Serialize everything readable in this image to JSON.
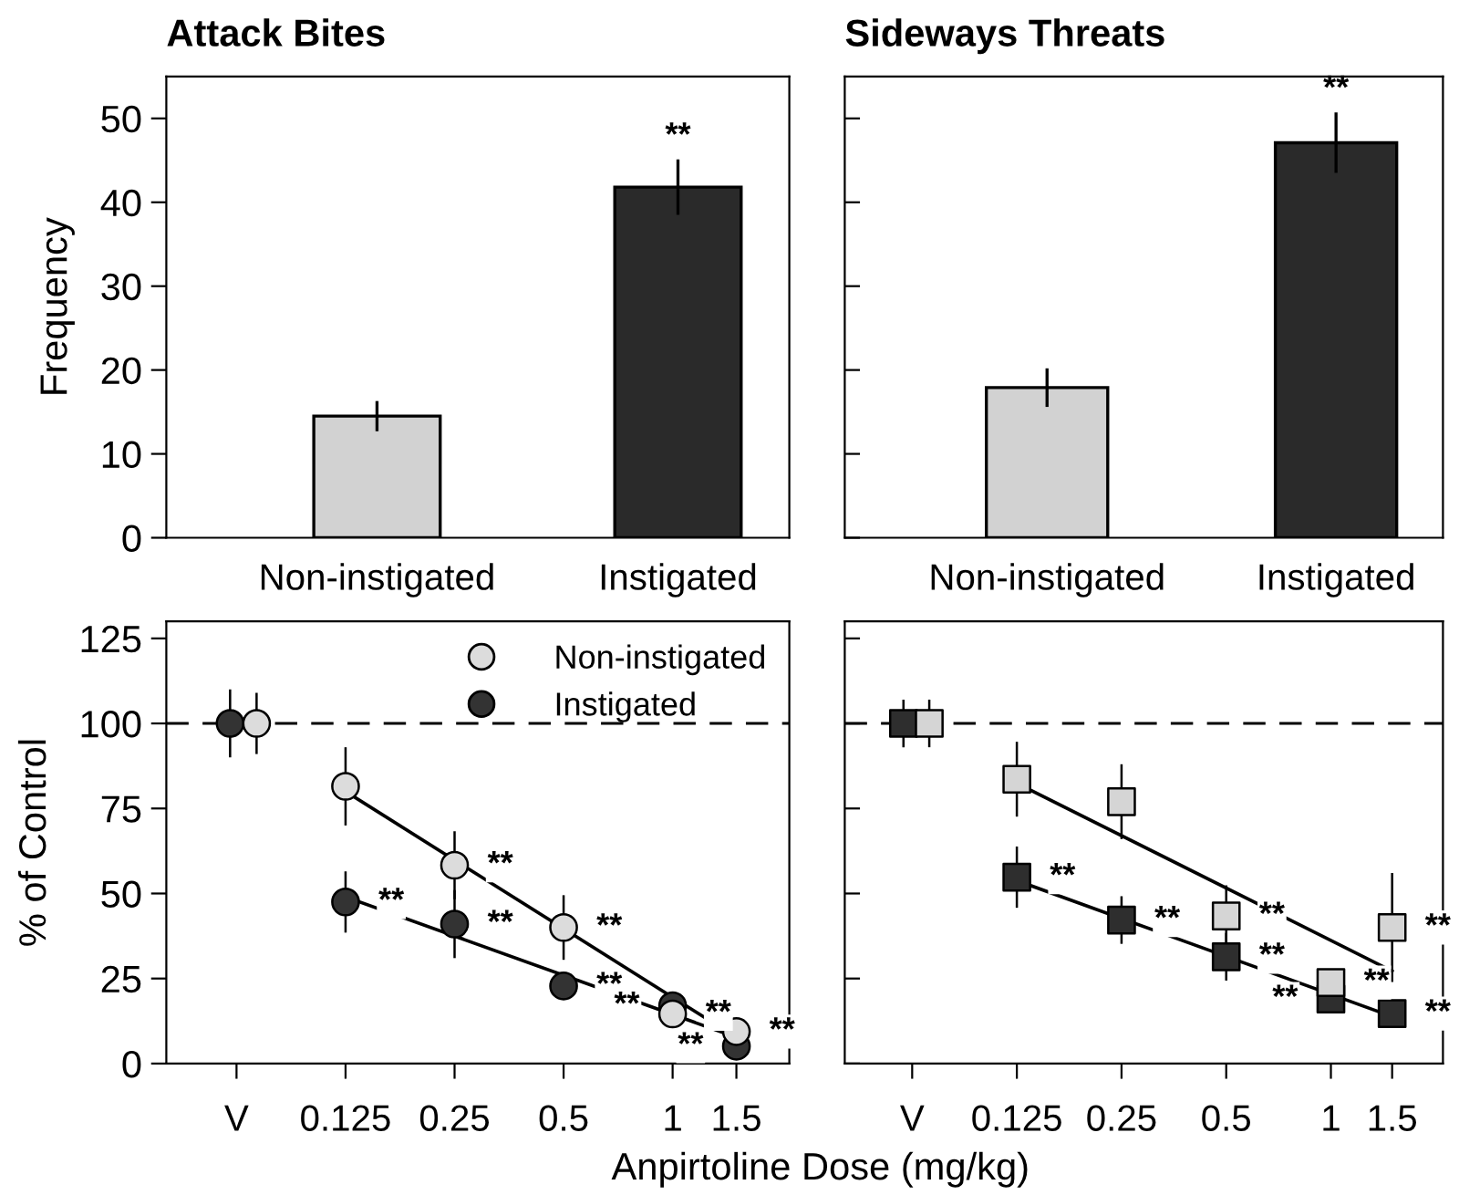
{
  "chart_data": [
    {
      "type": "bar",
      "title": "Attack Bites",
      "ylabel": "Frequency",
      "categories": [
        "Non-instigated",
        "Instigated"
      ],
      "values": [
        14.5,
        41.8
      ],
      "errors": [
        1.8,
        3.3
      ],
      "colors": [
        "#d2d2d2",
        "#2a2a2a"
      ],
      "ylim": [
        0,
        55
      ],
      "yticks": [
        0,
        10,
        20,
        30,
        40,
        50
      ],
      "grid": false,
      "annotations": [
        "**"
      ]
    },
    {
      "type": "bar",
      "title": "Sideways Threats",
      "categories": [
        "Non-instigated",
        "Instigated"
      ],
      "values": [
        17.9,
        47.1
      ],
      "errors": [
        2.3,
        3.6
      ],
      "colors": [
        "#d2d2d2",
        "#2a2a2a"
      ],
      "ylim": [
        0,
        55
      ],
      "yticks": [
        0,
        10,
        20,
        30,
        40,
        50
      ],
      "tick_labels": "x",
      "grid": false,
      "annotations": [
        "**"
      ]
    },
    {
      "type": "scatter",
      "ylabel": "% of Control",
      "xlabel": "Anpirtoline Dose (mg/kg)",
      "log": "x",
      "grid": false,
      "legend": "top right",
      "xlim": [
        0.04,
        2.1
      ],
      "xticks": [
        {
          "value": 0.0625,
          "label": "V"
        },
        0.125,
        0.25,
        0.5,
        1,
        1.5
      ],
      "ylim": [
        0,
        130
      ],
      "yticks": [
        0,
        25,
        50,
        75,
        100,
        125
      ],
      "series": [
        {
          "name": "Non-instigated",
          "color": "#dcdcdc",
          "marker": "circle",
          "x": [
            0.071,
            0.125,
            0.25,
            0.5,
            1,
            1.5
          ],
          "values": [
            100,
            81.5,
            58.3,
            40,
            14.6,
            9.4
          ],
          "errors": [
            9,
            11.5,
            10,
            9.5,
            null,
            null
          ]
        },
        {
          "name": "Instigated",
          "color": "#333333",
          "marker": "circle",
          "x": [
            0.06,
            0.125,
            0.25,
            0.5,
            1,
            1.5
          ],
          "values": [
            100,
            47.5,
            41,
            22.8,
            17,
            5.1
          ],
          "errors": [
            10,
            9,
            10,
            null,
            null,
            null
          ]
        },
        {
          "type": "line",
          "color": "#000000",
          "marker": "none",
          "x": [
            0.125,
            1.5
          ],
          "values": [
            80,
            7.7
          ]
        },
        {
          "type": "line",
          "color": "#000000",
          "marker": "none",
          "x": [
            0.125,
            1.5
          ],
          "values": [
            49,
            7.7
          ]
        }
      ],
      "ref_lines": [
        {
          "axis": "y",
          "value": 100,
          "color": "#000000",
          "line_style": "dashed"
        }
      ],
      "annotations": [
        {
          "text": "**",
          "x": 0.25,
          "y": 58.3
        },
        {
          "text": "**",
          "x": 0.125,
          "y": 47.5
        },
        {
          "text": "**",
          "x": 0.25,
          "y": 41
        },
        {
          "text": "**",
          "x": 0.5,
          "y": 40
        },
        {
          "text": "**",
          "x": 0.5,
          "y": 22.8
        },
        {
          "text": "**",
          "x": 1,
          "y": 14.6
        },
        {
          "text": "**",
          "x": 1,
          "y": 17
        },
        {
          "text": "**",
          "x": 1.5,
          "y": 9.4
        },
        {
          "text": "**",
          "x": 1.5,
          "y": 5.1
        }
      ]
    },
    {
      "type": "scatter",
      "log": "x",
      "grid": false,
      "tick_labels": "x",
      "xlim": [
        0.04,
        2.1
      ],
      "xticks": [
        {
          "value": 0.0625,
          "label": "V"
        },
        0.125,
        0.25,
        0.5,
        1,
        1.5
      ],
      "ylim": [
        0,
        130
      ],
      "yticks": [
        0,
        25,
        50,
        75,
        100,
        125
      ],
      "series": [
        {
          "color": "#d5d5d5",
          "marker": "square",
          "x": [
            0.07,
            0.125,
            0.25,
            0.5,
            1,
            1.5
          ],
          "values": [
            100,
            83.6,
            77,
            43.4,
            23.8,
            40
          ],
          "errors": [
            7,
            11,
            11,
            9,
            4,
            16
          ]
        },
        {
          "color": "#2e2e2e",
          "marker": "square",
          "x": [
            0.059,
            0.125,
            0.25,
            0.5,
            1,
            1.5
          ],
          "values": [
            100,
            54.8,
            42.2,
            31.4,
            19,
            14.7
          ],
          "errors": [
            7,
            9,
            7,
            7,
            null,
            null
          ]
        },
        {
          "type": "line",
          "color": "#000000",
          "marker": "none",
          "x": [
            0.125,
            1.5
          ],
          "values": [
            82.4,
            27.2
          ]
        },
        {
          "type": "line",
          "color": "#000000",
          "marker": "none",
          "x": [
            0.125,
            1.5
          ],
          "values": [
            53.8,
            13.8
          ]
        }
      ],
      "ref_lines": [
        {
          "axis": "y",
          "value": 100,
          "color": "#000000",
          "line_style": "dashed"
        }
      ],
      "annotations": [
        {
          "text": "**",
          "x": 0.125,
          "y": 54.8
        },
        {
          "text": "**",
          "x": 0.25,
          "y": 42.2
        },
        {
          "text": "**",
          "x": 0.5,
          "y": 43.4
        },
        {
          "text": "**",
          "x": 0.5,
          "y": 31.4
        },
        {
          "text": "**",
          "x": 1,
          "y": 23.8
        },
        {
          "text": "**",
          "x": 1,
          "y": 19
        },
        {
          "text": "**",
          "x": 1.5,
          "y": 40
        },
        {
          "text": "**",
          "x": 1.5,
          "y": 14.7
        }
      ]
    }
  ]
}
